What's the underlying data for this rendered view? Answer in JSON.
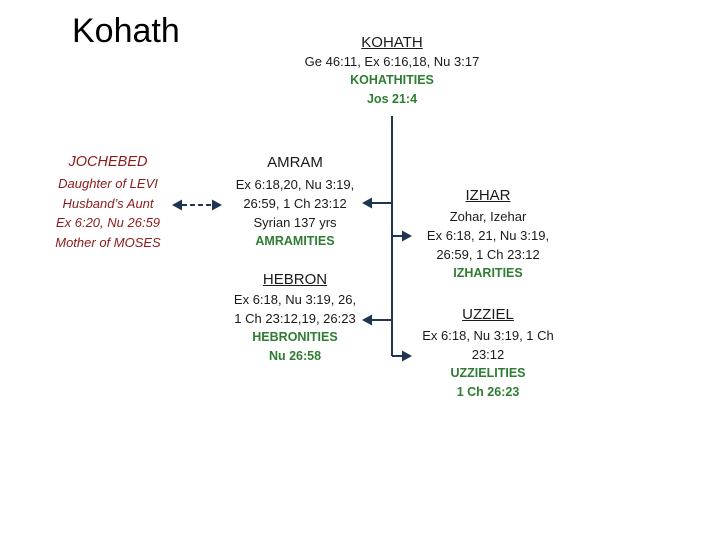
{
  "slide_title": "Kohath",
  "root": {
    "name": "KOHATH",
    "refs": "Ge 46:11, Ex 6:16,18, Nu 3:17",
    "group": "KOHATHITIES",
    "group_ref": "Jos 21:4"
  },
  "jochebed": {
    "name": "JOCHEBED",
    "lines": [
      "Daughter of LEVI",
      "Husband’s Aunt",
      "Ex 6:20, Nu 26:59",
      "Mother of MOSES"
    ]
  },
  "amram": {
    "name": "AMRAM",
    "lines": [
      "Ex 6:18,20, Nu 3:19,",
      "26:59, 1 Ch 23:12",
      "Syrian 137 yrs"
    ],
    "group": "AMRAMITIES"
  },
  "hebron": {
    "name": "HEBRON",
    "lines": [
      "Ex 6:18, Nu 3:19, 26,",
      "1 Ch 23:12,19, 26:23"
    ],
    "group": "HEBRONITIES",
    "group_ref": "Nu 26:58"
  },
  "izhar": {
    "name": "IZHAR",
    "lines": [
      "Zohar, Izehar",
      "Ex 6:18, 21, Nu 3:19,",
      "26:59, 1 Ch 23:12"
    ],
    "group": "IZHARITIES"
  },
  "uzziel": {
    "name": "UZZIEL",
    "lines": [
      "Ex 6:18, Nu 3:19, 1 Ch",
      "23:12"
    ],
    "group": "UZZIELITIES",
    "group_ref": "1 Ch 26:23"
  },
  "colors": {
    "connector": "#1f3552",
    "group_label": "#2e7d32",
    "jochebed_text": "#8b1a1a"
  }
}
